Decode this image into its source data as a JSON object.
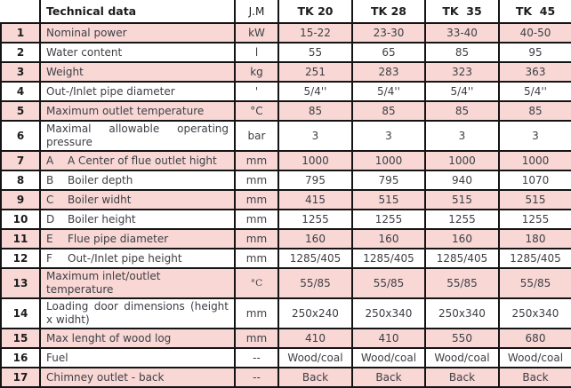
{
  "table": {
    "headers": {
      "num": "",
      "label": "Technical data",
      "unit": "J.M",
      "models": [
        "TK 20",
        "TK 28",
        "TK  35",
        "TK  45"
      ]
    },
    "rows": [
      {
        "num": "1",
        "label": "Nominal power",
        "unit": "kW",
        "values": [
          "15-22",
          "23-30",
          "33-40",
          "40-50"
        ]
      },
      {
        "num": "2",
        "label": "Water content",
        "unit": "l",
        "values": [
          "55",
          "65",
          "85",
          "95"
        ]
      },
      {
        "num": "3",
        "label": "Weight",
        "unit": "kg",
        "values": [
          "251",
          "283",
          "323",
          "363"
        ]
      },
      {
        "num": "4",
        "label": "Out-/Inlet pipe diameter",
        "unit": "'",
        "values": [
          "5/4''",
          "5/4''",
          "5/4''",
          "5/4''"
        ]
      },
      {
        "num": "5",
        "label": "Maximum outlet temperature",
        "unit": "°C",
        "values": [
          "85",
          "85",
          "85",
          "85"
        ]
      },
      {
        "num": "6",
        "label": "Maximal allowable operating pressure",
        "unit": "bar",
        "values": [
          "3",
          "3",
          "3",
          "3"
        ],
        "justify": true
      },
      {
        "num": "7",
        "letter": "A",
        "label": "A Center of flue outlet hight",
        "unit": "mm",
        "values": [
          "1000",
          "1000",
          "1000",
          "1000"
        ]
      },
      {
        "num": "8",
        "letter": "B",
        "label": "Boiler depth",
        "unit": "mm",
        "values": [
          "795",
          "795",
          "940",
          "1070"
        ]
      },
      {
        "num": "9",
        "letter": "C",
        "label": "Boiler widht",
        "unit": "mm",
        "values": [
          "415",
          "515",
          "515",
          "515"
        ]
      },
      {
        "num": "10",
        "letter": "D",
        "label": "Boiler height",
        "unit": "mm",
        "values": [
          "1255",
          "1255",
          "1255",
          "1255"
        ]
      },
      {
        "num": "11",
        "letter": "E",
        "label": "Flue pipe diameter",
        "unit": "mm",
        "values": [
          "160",
          "160",
          "160",
          "180"
        ]
      },
      {
        "num": "12",
        "letter": "F",
        "label": "Out-/Inlet pipe height",
        "unit": "mm",
        "values": [
          "1285/405",
          "1285/405",
          "1285/405",
          "1285/405"
        ]
      },
      {
        "num": "13",
        "label": "Maximum inlet/outlet temperature",
        "unit": "°C",
        "values": [
          "55/85",
          "55/85",
          "55/85",
          "55/85"
        ],
        "unit_serif": true
      },
      {
        "num": "14",
        "label": "Loading door dimensions (height x widht)",
        "unit": "mm",
        "values": [
          "250x240",
          "250x340",
          "250x340",
          "250x340"
        ],
        "justify": true
      },
      {
        "num": "15",
        "label": "Max lenght of wood log",
        "unit": "mm",
        "values": [
          "410",
          "410",
          "550",
          "680"
        ]
      },
      {
        "num": "16",
        "label": "Fuel",
        "unit": "--",
        "values": [
          "Wood/coal",
          "Wood/coal",
          "Wood/coal",
          "Wood/coal"
        ]
      },
      {
        "num": "17",
        "label": "Chimney outlet - back",
        "unit": "--",
        "values": [
          "Back",
          "Back",
          "Back",
          "Back"
        ]
      }
    ],
    "colors": {
      "row_pink": "#f8d7d5",
      "row_white": "#ffffff",
      "border": "#141414",
      "text": "#3d3f44"
    }
  }
}
